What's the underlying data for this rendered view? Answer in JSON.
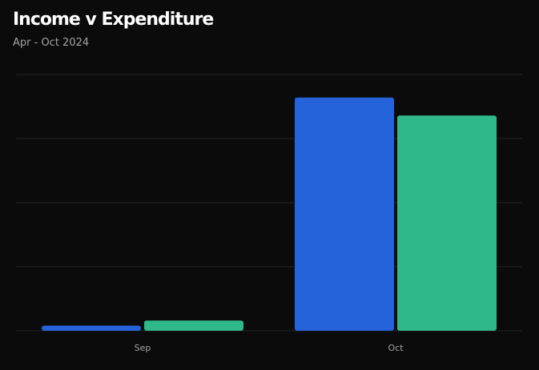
{
  "header": {
    "title": "Income v Expenditure",
    "subtitle": "Apr - Oct 2024"
  },
  "chart_data": {
    "type": "bar",
    "title": "Income v Expenditure",
    "subtitle": "Apr - Oct 2024",
    "categories": [
      "Sep",
      "Oct"
    ],
    "series": [
      {
        "color": "#2563db",
        "values": [
          2,
          91
        ]
      },
      {
        "color": "#2fb88a",
        "values": [
          4,
          84
        ]
      }
    ],
    "ylim": [
      0,
      100
    ],
    "grid": true,
    "xlabel": "",
    "ylabel": ""
  }
}
